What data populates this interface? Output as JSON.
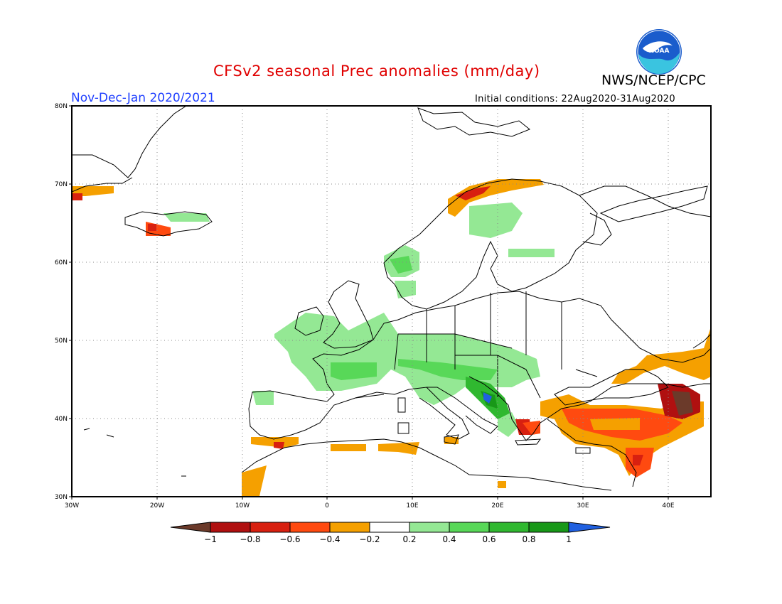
{
  "header": {
    "title": "CFSv2 seasonal Prec anomalies (mm/day)",
    "organization": "NWS/NCEP/CPC",
    "period": "Nov-Dec-Jan 2020/2021",
    "initial_conditions": "Initial conditions: 22Aug2020-31Aug2020",
    "logo_text": "NOAA"
  },
  "map": {
    "lon_range": [
      -30,
      45
    ],
    "lat_range": [
      30,
      80
    ],
    "lat_ticks": [
      "80N",
      "70N",
      "60N",
      "50N",
      "40N",
      "30N"
    ],
    "lon_ticks": [
      "30W",
      "20W",
      "10W",
      "0",
      "10E",
      "20E",
      "30E",
      "40E"
    ],
    "grid": "dotted"
  },
  "colorbar": {
    "labels": [
      "-1",
      "-0.8",
      "-0.6",
      "-0.4",
      "-0.2",
      "0.2",
      "0.4",
      "0.6",
      "0.8",
      "1"
    ],
    "colors": [
      "#6b3a2a",
      "#b01010",
      "#d82010",
      "#ff4a10",
      "#f5a000",
      "#ffffff",
      "#94e894",
      "#58d858",
      "#30b830",
      "#189818",
      "#2060e0"
    ]
  },
  "anomaly_regions": [
    {
      "region": "Western/Central Europe",
      "category": "0.2-0.4"
    },
    {
      "region": "Adriatic coast",
      "category": "0.6-1"
    },
    {
      "region": "Southern Norway",
      "category": "0.2-0.4"
    },
    {
      "region": "Turkey",
      "category": "-0.6--0.2"
    },
    {
      "region": "Caucasus",
      "category": "-1--0.6"
    },
    {
      "region": "North Africa coast",
      "category": "-0.4--0.2"
    },
    {
      "region": "Northern Norway coast",
      "category": "-0.6--0.2"
    },
    {
      "region": "Iceland",
      "category": "-0.6--0.2"
    }
  ]
}
